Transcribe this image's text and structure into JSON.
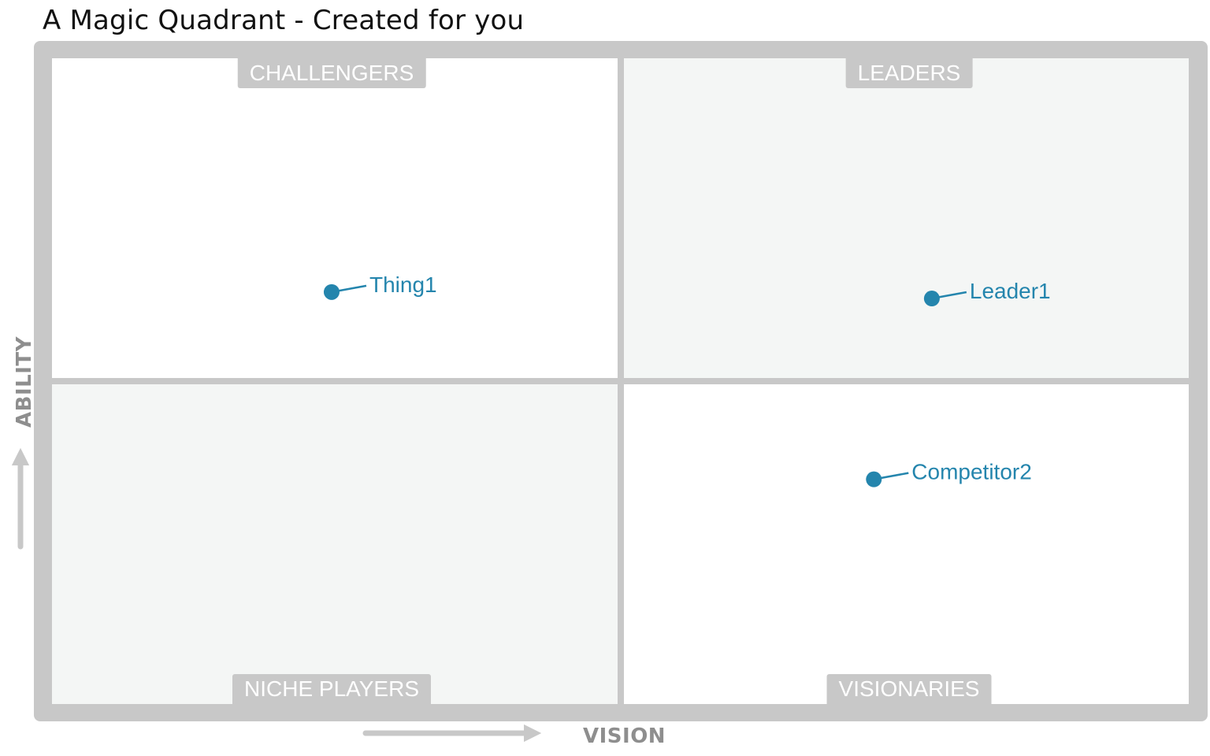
{
  "title": "A Magic Quadrant - Created for you",
  "colors": {
    "frame": "#c8c8c8",
    "point": "#2485ad",
    "axis_text": "#8e8e8e",
    "quadrant_shaded": "#f4f6f5",
    "quadrant_plain": "#ffffff"
  },
  "quadrants": {
    "top_left": "CHALLENGERS",
    "top_right": "LEADERS",
    "bottom_left": "NICHE PLAYERS",
    "bottom_right": "VISIONARIES"
  },
  "axes": {
    "x_label": "VISION",
    "y_label": "ABILITY"
  },
  "chart_data": {
    "type": "scatter",
    "title": "A Magic Quadrant - Created for you",
    "xlabel": "VISION",
    "ylabel": "ABILITY",
    "xlim": [
      0,
      100
    ],
    "ylim": [
      0,
      100
    ],
    "grid": false,
    "points": [
      {
        "name": "Thing1",
        "x": 24.6,
        "y": 63.8
      },
      {
        "name": "Leader1",
        "x": 77.4,
        "y": 62.8
      },
      {
        "name": "Competitor2",
        "x": 72.3,
        "y": 34.8
      }
    ]
  }
}
